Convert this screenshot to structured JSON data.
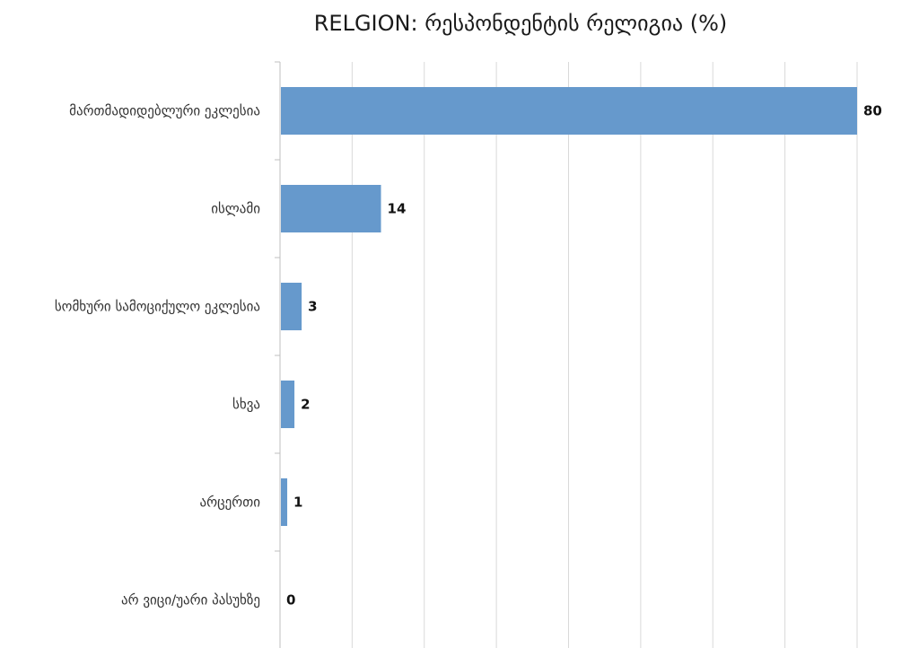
{
  "chart_data": {
    "type": "bar",
    "orientation": "horizontal",
    "title": "RELGION: რესპონდენტის რელიგია (%)",
    "categories": [
      "მართმადიდებლური ეკლესია",
      "ისლამი",
      "სომხური სამოციქულო ეკლესია",
      "სხვა",
      "არცერთი",
      "არ ვიცი/უარი პასუხზე"
    ],
    "values": [
      80,
      14,
      3,
      2,
      1,
      0
    ],
    "data_labels": [
      "80",
      "14",
      "3",
      "2",
      "1",
      "0"
    ],
    "xlim": [
      0,
      80
    ],
    "grid": true,
    "legend": "none",
    "bar_color": "#6699cc"
  }
}
